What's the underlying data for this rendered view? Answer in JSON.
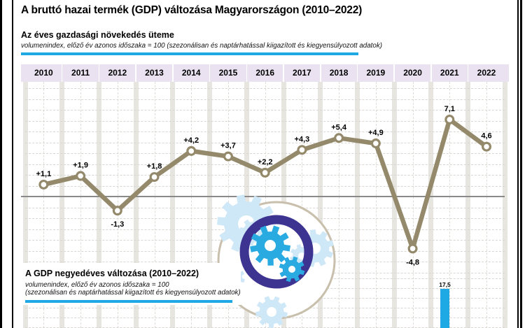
{
  "header": {
    "title": "A bruttó hazai termék (GDP) változása Magyarországon (2010–2022)",
    "section_title": "Az éves gazdasági növekedés üteme",
    "section_note": "volumenindex, előző év azonos időszaka = 100 (szezonálisan és naptárhatással kiigazított és kiegyensúlyozott adatok)"
  },
  "quarterly_section": {
    "title": "A GDP negyedéves változása (2010–2022)",
    "note_line1": "volumenindex, előző év azonos időszaka = 100",
    "note_line2": "(szezonálisan és naptárhatással kiigazított és kiegyensúlyozott adatok)"
  },
  "colors": {
    "accent_blue": "#1FA9E4",
    "line_olive": "#948A6B",
    "year_band_purple": "#EAE2F1",
    "grid_band_gray": "#E7E5E0",
    "zero_line_gray": "#8A8A8A",
    "ring_indigo": "#3D3492",
    "gear_blue": "#29ABE2",
    "gear_faded_blue": "#CFE8F7",
    "circle_tan": "#C9BFAD"
  },
  "chart_data": [
    {
      "type": "line",
      "title": "Az éves gazdasági növekedés üteme",
      "subtitle": "volumenindex, előző év azonos időszaka = 100 (szezonálisan és naptárhatással kiigazított és kiegyensúlyozott adatok)",
      "categories": [
        "2010",
        "2011",
        "2012",
        "2013",
        "2014",
        "2015",
        "2016",
        "2017",
        "2018",
        "2019",
        "2020",
        "2021",
        "2022"
      ],
      "values": [
        1.1,
        1.9,
        -1.3,
        1.8,
        4.2,
        3.7,
        2.2,
        4.3,
        5.4,
        4.9,
        -4.8,
        7.1,
        4.6
      ],
      "labels": [
        "+1,1",
        "+1,9",
        "-1,3",
        "+1,8",
        "+4,2",
        "+3,7",
        "+2,2",
        "+4,3",
        "+5,4",
        "+4,9",
        "-4,8",
        "7,1",
        "4,6"
      ],
      "ylim": [
        -7,
        10.5
      ],
      "gridline_interval": 1,
      "legend": false,
      "grid": true
    },
    {
      "type": "bar",
      "title": "A GDP negyedéves változása (2010–2022)",
      "subtitle": "volumenindex, előző év azonos időszaka = 100 (szezonálisan és naptárhatással kiigazított és kiegyensúlyozott adatok)",
      "visible_bars": [
        {
          "label": "17,5",
          "value": 17.5
        }
      ],
      "note": "chart cropped at bottom edge of image; only the top of one bar is visible"
    }
  ]
}
